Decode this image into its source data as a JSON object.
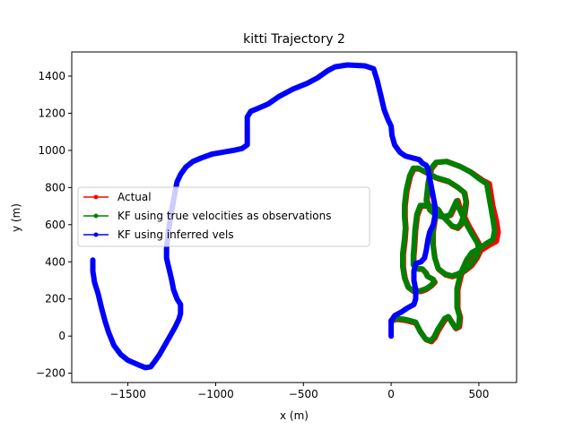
{
  "chart_data": {
    "type": "line",
    "title": "kitti Trajectory 2",
    "xlabel": "x (m)",
    "ylabel": "y (m)",
    "xlim": [
      -1820,
      715
    ],
    "ylim": [
      -250,
      1530
    ],
    "xticks": [
      -1500,
      -1000,
      -500,
      0,
      500
    ],
    "xtick_labels": [
      "−1500",
      "−1000",
      "−500",
      "0",
      "500"
    ],
    "yticks": [
      -200,
      0,
      200,
      400,
      600,
      800,
      1000,
      1200,
      1400
    ],
    "ytick_labels": [
      "−200",
      "0",
      "200",
      "400",
      "600",
      "800",
      "1000",
      "1200",
      "1400"
    ],
    "grid": false,
    "legend_position": "center-left",
    "series": [
      {
        "name": "Actual",
        "color": "#ff0000",
        "points": [
          [
            0,
            80
          ],
          [
            30,
            90
          ],
          [
            80,
            85
          ],
          [
            140,
            70
          ],
          [
            170,
            20
          ],
          [
            200,
            -20
          ],
          [
            230,
            -30
          ],
          [
            250,
            -10
          ],
          [
            270,
            30
          ],
          [
            290,
            60
          ],
          [
            310,
            90
          ],
          [
            330,
            100
          ],
          [
            350,
            70
          ],
          [
            370,
            40
          ],
          [
            390,
            50
          ],
          [
            395,
            100
          ],
          [
            380,
            150
          ],
          [
            380,
            250
          ],
          [
            400,
            330
          ],
          [
            440,
            400
          ],
          [
            470,
            440
          ],
          [
            510,
            460
          ],
          [
            560,
            490
          ],
          [
            600,
            510
          ],
          [
            610,
            560
          ],
          [
            600,
            620
          ],
          [
            580,
            700
          ],
          [
            560,
            820
          ],
          [
            520,
            840
          ],
          [
            460,
            880
          ],
          [
            400,
            910
          ],
          [
            320,
            940
          ],
          [
            260,
            935
          ],
          [
            230,
            900
          ],
          [
            215,
            820
          ],
          [
            205,
            730
          ],
          [
            225,
            680
          ],
          [
            260,
            650
          ],
          [
            300,
            640
          ],
          [
            340,
            650
          ],
          [
            360,
            690
          ],
          [
            380,
            730
          ],
          [
            390,
            700
          ],
          [
            410,
            660
          ],
          [
            440,
            600
          ],
          [
            470,
            550
          ],
          [
            500,
            500
          ],
          [
            510,
            460
          ],
          [
            490,
            420
          ],
          [
            460,
            380
          ],
          [
            420,
            350
          ],
          [
            380,
            330
          ],
          [
            350,
            320
          ],
          [
            310,
            330
          ],
          [
            270,
            360
          ],
          [
            250,
            420
          ],
          [
            240,
            490
          ],
          [
            240,
            560
          ],
          [
            250,
            620
          ],
          [
            260,
            660
          ],
          [
            240,
            690
          ],
          [
            200,
            700
          ],
          [
            170,
            700
          ],
          [
            150,
            650
          ],
          [
            140,
            570
          ],
          [
            135,
            490
          ],
          [
            130,
            430
          ],
          [
            130,
            380
          ],
          [
            155,
            360
          ],
          [
            180,
            360
          ],
          [
            200,
            340
          ],
          [
            210,
            320
          ],
          [
            240,
            305
          ],
          [
            250,
            290
          ],
          [
            230,
            270
          ],
          [
            200,
            250
          ],
          [
            170,
            240
          ],
          [
            130,
            240
          ],
          [
            100,
            260
          ],
          [
            80,
            310
          ],
          [
            70,
            370
          ],
          [
            70,
            440
          ],
          [
            80,
            520
          ],
          [
            85,
            580
          ],
          [
            80,
            640
          ],
          [
            80,
            700
          ],
          [
            90,
            780
          ],
          [
            110,
            860
          ],
          [
            130,
            900
          ],
          [
            160,
            900
          ],
          [
            200,
            880
          ],
          [
            260,
            850
          ],
          [
            330,
            830
          ],
          [
            380,
            800
          ],
          [
            420,
            770
          ],
          [
            430,
            720
          ],
          [
            420,
            650
          ],
          [
            400,
            600
          ],
          [
            380,
            580
          ],
          [
            350,
            590
          ],
          [
            320,
            620
          ],
          [
            290,
            650
          ],
          [
            270,
            680
          ],
          [
            240,
            690
          ]
        ]
      },
      {
        "name": "KF using true velocities as observations",
        "color": "#008000",
        "points": [
          [
            0,
            85
          ],
          [
            30,
            95
          ],
          [
            80,
            90
          ],
          [
            140,
            75
          ],
          [
            165,
            25
          ],
          [
            195,
            -15
          ],
          [
            225,
            -25
          ],
          [
            245,
            -5
          ],
          [
            265,
            35
          ],
          [
            285,
            65
          ],
          [
            305,
            95
          ],
          [
            325,
            105
          ],
          [
            345,
            75
          ],
          [
            365,
            45
          ],
          [
            385,
            55
          ],
          [
            390,
            105
          ],
          [
            375,
            155
          ],
          [
            375,
            255
          ],
          [
            395,
            335
          ],
          [
            430,
            410
          ],
          [
            460,
            450
          ],
          [
            500,
            470
          ],
          [
            545,
            500
          ],
          [
            580,
            520
          ],
          [
            590,
            570
          ],
          [
            580,
            630
          ],
          [
            565,
            710
          ],
          [
            545,
            820
          ],
          [
            505,
            845
          ],
          [
            450,
            885
          ],
          [
            390,
            915
          ],
          [
            315,
            940
          ],
          [
            255,
            935
          ],
          [
            225,
            900
          ],
          [
            210,
            820
          ],
          [
            200,
            730
          ],
          [
            220,
            680
          ],
          [
            255,
            650
          ],
          [
            295,
            642
          ],
          [
            335,
            652
          ],
          [
            355,
            692
          ],
          [
            372,
            728
          ],
          [
            382,
            698
          ],
          [
            402,
            658
          ],
          [
            432,
            598
          ],
          [
            462,
            548
          ],
          [
            492,
            500
          ],
          [
            500,
            462
          ],
          [
            482,
            422
          ],
          [
            452,
            382
          ],
          [
            415,
            352
          ],
          [
            378,
            334
          ],
          [
            348,
            324
          ],
          [
            308,
            334
          ],
          [
            268,
            364
          ],
          [
            248,
            424
          ],
          [
            238,
            494
          ],
          [
            238,
            564
          ],
          [
            248,
            624
          ],
          [
            256,
            664
          ],
          [
            236,
            694
          ],
          [
            198,
            704
          ],
          [
            166,
            704
          ],
          [
            146,
            654
          ],
          [
            136,
            574
          ],
          [
            131,
            494
          ],
          [
            126,
            434
          ],
          [
            126,
            384
          ],
          [
            150,
            364
          ],
          [
            176,
            362
          ],
          [
            196,
            342
          ],
          [
            206,
            322
          ],
          [
            236,
            307
          ],
          [
            246,
            292
          ],
          [
            226,
            272
          ],
          [
            196,
            254
          ],
          [
            166,
            244
          ],
          [
            126,
            244
          ],
          [
            96,
            264
          ],
          [
            76,
            314
          ],
          [
            66,
            374
          ],
          [
            66,
            444
          ],
          [
            76,
            524
          ],
          [
            81,
            584
          ],
          [
            76,
            644
          ],
          [
            76,
            704
          ],
          [
            86,
            784
          ],
          [
            106,
            864
          ],
          [
            126,
            904
          ],
          [
            156,
            904
          ],
          [
            196,
            884
          ],
          [
            256,
            854
          ],
          [
            326,
            834
          ],
          [
            376,
            804
          ],
          [
            416,
            774
          ],
          [
            426,
            724
          ],
          [
            416,
            654
          ],
          [
            396,
            604
          ],
          [
            376,
            584
          ],
          [
            346,
            594
          ],
          [
            316,
            624
          ],
          [
            286,
            654
          ],
          [
            266,
            684
          ],
          [
            236,
            694
          ]
        ]
      },
      {
        "name": "KF using inferred vels",
        "color": "#0000ff",
        "points": [
          [
            0,
            0
          ],
          [
            0,
            80
          ],
          [
            20,
            110
          ],
          [
            60,
            130
          ],
          [
            90,
            150
          ],
          [
            110,
            160
          ],
          [
            130,
            170
          ],
          [
            140,
            200
          ],
          [
            140,
            250
          ],
          [
            130,
            300
          ],
          [
            130,
            350
          ],
          [
            140,
            390
          ],
          [
            170,
            400
          ],
          [
            190,
            420
          ],
          [
            200,
            460
          ],
          [
            210,
            520
          ],
          [
            220,
            560
          ],
          [
            240,
            600
          ],
          [
            250,
            650
          ],
          [
            250,
            700
          ],
          [
            240,
            750
          ],
          [
            230,
            800
          ],
          [
            220,
            850
          ],
          [
            210,
            900
          ],
          [
            200,
            920
          ],
          [
            180,
            930
          ],
          [
            160,
            950
          ],
          [
            120,
            960
          ],
          [
            80,
            970
          ],
          [
            50,
            990
          ],
          [
            20,
            1030
          ],
          [
            5,
            1080
          ],
          [
            0,
            1130
          ],
          [
            -20,
            1170
          ],
          [
            -40,
            1220
          ],
          [
            -60,
            1300
          ],
          [
            -80,
            1380
          ],
          [
            -100,
            1440
          ],
          [
            -150,
            1455
          ],
          [
            -250,
            1460
          ],
          [
            -320,
            1450
          ],
          [
            -360,
            1430
          ],
          [
            -420,
            1390
          ],
          [
            -480,
            1360
          ],
          [
            -560,
            1330
          ],
          [
            -640,
            1290
          ],
          [
            -700,
            1250
          ],
          [
            -750,
            1230
          ],
          [
            -800,
            1210
          ],
          [
            -820,
            1180
          ],
          [
            -820,
            1100
          ],
          [
            -820,
            1030
          ],
          [
            -850,
            1010
          ],
          [
            -900,
            1000
          ],
          [
            -960,
            990
          ],
          [
            -1020,
            980
          ],
          [
            -1080,
            960
          ],
          [
            -1130,
            940
          ],
          [
            -1170,
            910
          ],
          [
            -1200,
            870
          ],
          [
            -1220,
            830
          ],
          [
            -1230,
            780
          ],
          [
            -1240,
            730
          ],
          [
            -1250,
            680
          ],
          [
            -1260,
            620
          ],
          [
            -1270,
            560
          ],
          [
            -1275,
            510
          ],
          [
            -1280,
            470
          ],
          [
            -1280,
            420
          ],
          [
            -1270,
            380
          ],
          [
            -1260,
            340
          ],
          [
            -1250,
            300
          ],
          [
            -1240,
            250
          ],
          [
            -1220,
            200
          ],
          [
            -1200,
            170
          ],
          [
            -1200,
            120
          ],
          [
            -1210,
            90
          ],
          [
            -1230,
            50
          ],
          [
            -1260,
            0
          ],
          [
            -1290,
            -50
          ],
          [
            -1320,
            -100
          ],
          [
            -1350,
            -140
          ],
          [
            -1370,
            -165
          ],
          [
            -1400,
            -170
          ],
          [
            -1440,
            -155
          ],
          [
            -1500,
            -130
          ],
          [
            -1540,
            -100
          ],
          [
            -1580,
            -50
          ],
          [
            -1610,
            20
          ],
          [
            -1630,
            80
          ],
          [
            -1650,
            150
          ],
          [
            -1670,
            230
          ],
          [
            -1690,
            290
          ],
          [
            -1700,
            350
          ],
          [
            -1700,
            410
          ]
        ]
      }
    ]
  }
}
